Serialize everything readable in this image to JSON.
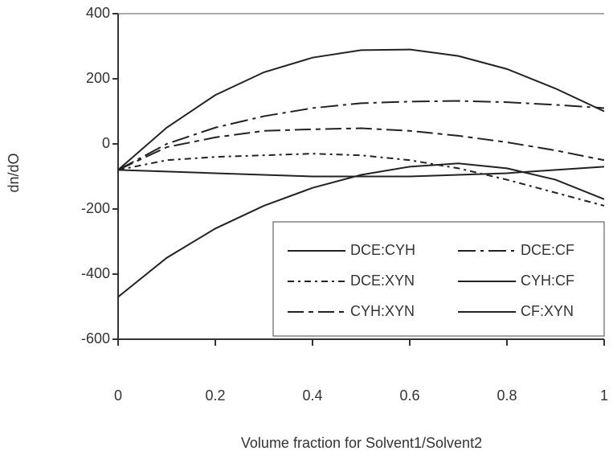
{
  "chart_data": {
    "type": "line",
    "x_label": "Volume fraction for Solvent1/Solvent2",
    "y_label": "dn/dO",
    "x": [
      0,
      0.1,
      0.2,
      0.3,
      0.4,
      0.5,
      0.6,
      0.7,
      0.8,
      0.9,
      1
    ],
    "xlim": [
      0,
      1
    ],
    "xticks": [
      0,
      0.2,
      0.4,
      0.6,
      0.8,
      1
    ],
    "ylim": [
      -600,
      400
    ],
    "yticks": [
      400,
      200,
      0,
      -200,
      -400,
      -600
    ],
    "grid": false,
    "legend": "lower right",
    "series": [
      {
        "name": "DCE:CYH",
        "color": "#222222",
        "style": "solid",
        "values": [
          -80,
          50,
          150,
          220,
          265,
          288,
          290,
          270,
          230,
          170,
          100
        ]
      },
      {
        "name": "DCE:CF",
        "color": "#222222",
        "style": "long-dash-dot",
        "values": [
          -80,
          0,
          50,
          85,
          110,
          125,
          130,
          132,
          128,
          120,
          110
        ]
      },
      {
        "name": "DCE:XYN",
        "color": "#222222",
        "style": "dash-dot",
        "values": [
          -80,
          -50,
          -40,
          -35,
          -30,
          -35,
          -50,
          -75,
          -110,
          -150,
          -190
        ]
      },
      {
        "name": "CYH:CF",
        "color": "#222222",
        "style": "solid",
        "values": [
          -80,
          -85,
          -90,
          -95,
          -100,
          -100,
          -100,
          -95,
          -90,
          -80,
          -70
        ]
      },
      {
        "name": "CYH:XYN",
        "color": "#222222",
        "style": "long-dash",
        "values": [
          -80,
          -10,
          20,
          40,
          45,
          48,
          40,
          25,
          5,
          -20,
          -50
        ]
      },
      {
        "name": "CF:XYN",
        "color": "#222222",
        "style": "solid",
        "values": [
          -470,
          -350,
          -260,
          -190,
          -135,
          -95,
          -70,
          -60,
          -75,
          -110,
          -170
        ]
      }
    ]
  }
}
